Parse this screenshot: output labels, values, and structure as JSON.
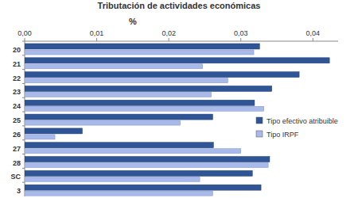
{
  "chart_data": {
    "type": "bar",
    "orientation": "horizontal",
    "title": "Tributación de actividades económicas",
    "x_label": "%",
    "categories": [
      "20",
      "21",
      "22",
      "23",
      "24",
      "25",
      "26",
      "27",
      "28",
      "SC",
      "3"
    ],
    "series": [
      {
        "name": "Tipo efectivo atribuible",
        "color": "#2f5597",
        "values": [
          0.0326,
          0.0423,
          0.0381,
          0.0343,
          0.0319,
          0.0261,
          0.008,
          0.0262,
          0.034,
          0.0316,
          0.0328
        ]
      },
      {
        "name": "Tipo IRPF",
        "color": "#a9b9ea",
        "values": [
          0.0318,
          0.0247,
          0.0282,
          0.0259,
          0.0332,
          0.0216,
          0.0042,
          0.03,
          0.0338,
          0.0243,
          0.0261
        ]
      }
    ],
    "xlim": [
      0,
      0.0435
    ],
    "xticks": [
      {
        "value": 0,
        "label": "0,00"
      },
      {
        "value": 0.01,
        "label": "0,01"
      },
      {
        "value": 0.02,
        "label": "0,02"
      },
      {
        "value": 0.03,
        "label": "0,03"
      },
      {
        "value": 0.04,
        "label": "0,04"
      }
    ],
    "grid": false,
    "legend": "right"
  }
}
